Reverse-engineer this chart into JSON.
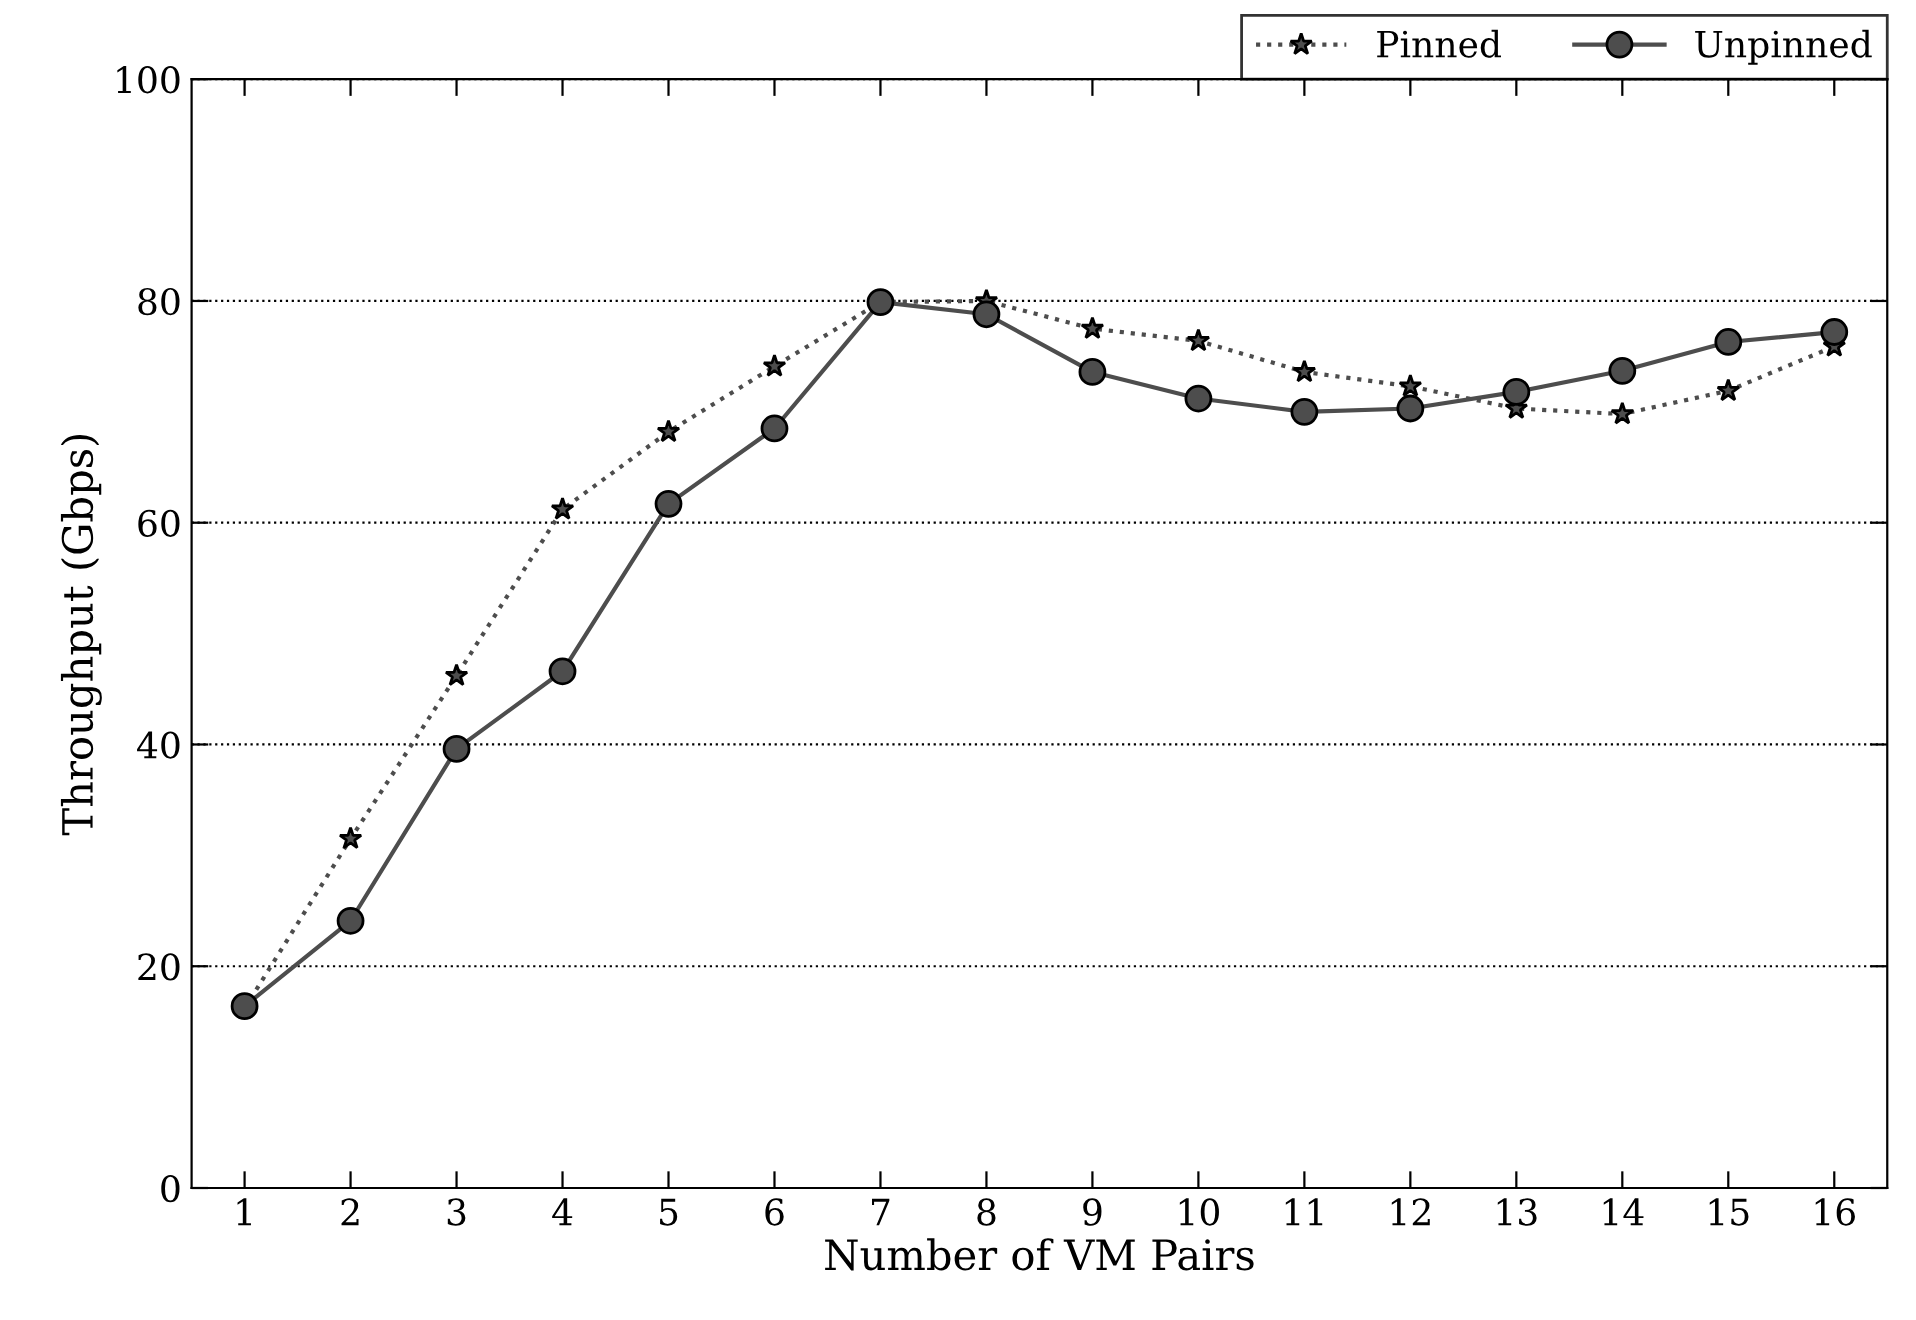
{
  "chart_data": {
    "type": "line",
    "xlabel": "Number of VM Pairs",
    "ylabel": "Throughput (Gbps)",
    "x": [
      1,
      2,
      3,
      4,
      5,
      6,
      7,
      8,
      9,
      10,
      11,
      12,
      13,
      14,
      15,
      16
    ],
    "xlim": [
      0.5,
      16.5
    ],
    "xticks": [
      1,
      2,
      3,
      4,
      5,
      6,
      7,
      8,
      9,
      10,
      11,
      12,
      13,
      14,
      15,
      16
    ],
    "ylim": [
      0,
      100
    ],
    "yticks": [
      0,
      20,
      40,
      60,
      80,
      100
    ],
    "grid": "y",
    "legend": "top right",
    "series": [
      {
        "name": "Pinned",
        "color": "#4d4d4d",
        "marker": "star",
        "line_style": "dotted",
        "values": [
          16.2,
          31.5,
          46.2,
          61.2,
          68.2,
          74.1,
          79.9,
          80,
          77.5,
          76.4,
          73.6,
          72.3,
          70.3,
          69.8,
          71.9,
          75.9
        ]
      },
      {
        "name": "Unpinned",
        "color": "#4d4d4d",
        "marker": "circle",
        "line_style": "solid",
        "values": [
          16.4,
          24.1,
          39.6,
          46.6,
          61.7,
          68.5,
          79.9,
          78.8,
          73.6,
          71.2,
          70,
          70.3,
          71.8,
          73.7,
          76.3,
          77.2
        ]
      }
    ]
  }
}
